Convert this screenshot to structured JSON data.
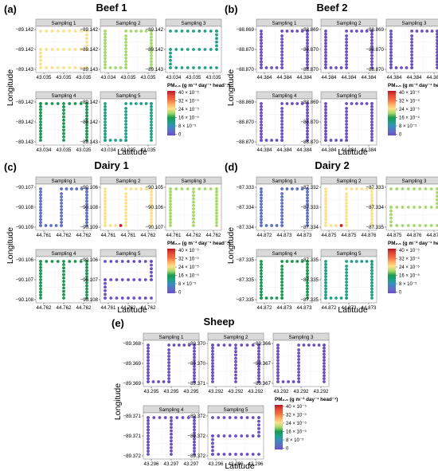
{
  "figure": {
    "legend_title": "PM₂.₅ (g m⁻² day⁻¹ head⁻¹)",
    "legend_ticks": [
      "40 × 10⁻⁵",
      "32 × 10⁻⁵",
      "24 × 10⁻⁵",
      "16 × 10⁻⁵",
      "8 × 10⁻⁵",
      "0"
    ],
    "legend_values": [
      40,
      32,
      24,
      16,
      8,
      0
    ],
    "legend_colors": [
      "#b2182b",
      "#e34a33",
      "#f46d43",
      "#fdae61",
      "#fee08b",
      "#a6d96a",
      "#1a9850",
      "#1fa187",
      "#3b8bc2",
      "#5e6fc4",
      "#6a4fc3"
    ],
    "x_axis_label": "Latitude",
    "y_axis_label": "Longitude"
  },
  "chart_data": [
    {
      "type": "scatter",
      "letter": "(a)",
      "title": "Beef 1",
      "xlabel": "Latitude",
      "ylabel": "Longitude",
      "subplots": [
        {
          "strip": "Sampling 1",
          "x_ticks": [
            "43.035",
            "43.035",
            "43.035"
          ],
          "y_ticks": [
            "−89.142",
            "−89.142",
            "−89.143"
          ],
          "level": 6,
          "shape": "s-shape"
        },
        {
          "strip": "Sampling 2",
          "x_ticks": [
            "43.034",
            "43.035",
            "43.035"
          ],
          "y_ticks": [
            "−89.142",
            "−89.142",
            "−89.143"
          ],
          "level": 5,
          "shape": "u-shape"
        },
        {
          "strip": "Sampling 3",
          "x_ticks": [
            "43.034",
            "43.035",
            "43.035"
          ],
          "y_ticks": [
            "−89.142",
            "−89.142",
            "−89.143"
          ],
          "level": 3,
          "shape": "s-shape"
        },
        {
          "strip": "Sampling 4",
          "x_ticks": [
            "43.034",
            "43.035",
            "43.035"
          ],
          "y_ticks": [
            "−89.142",
            "−89.142",
            "−89.143"
          ],
          "level": 4,
          "shape": "u-shape-inv"
        },
        {
          "strip": "Sampling 5",
          "x_ticks": [
            "43.034",
            "43.035",
            "43.035"
          ],
          "y_ticks": [
            "−89.142",
            "−89.142",
            "−89.143"
          ],
          "level": 3,
          "shape": "u-shape"
        }
      ]
    },
    {
      "type": "scatter",
      "letter": "(b)",
      "title": "Beef 2",
      "xlabel": "Latitude",
      "ylabel": "Longitude",
      "subplots": [
        {
          "strip": "Sampling 1",
          "x_ticks": [
            "44.384",
            "44.384",
            "44.384"
          ],
          "y_ticks": [
            "−88.869",
            "−88.870",
            "−88.870"
          ],
          "level": 0,
          "shape": "u-shape"
        },
        {
          "strip": "Sampling 2",
          "x_ticks": [
            "44.384",
            "44.384",
            "44.384"
          ],
          "y_ticks": [
            "−88.869",
            "−88.870",
            "−88.870"
          ],
          "level": 0,
          "shape": "u-shape"
        },
        {
          "strip": "Sampling 3",
          "x_ticks": [
            "44.384",
            "44.384",
            "44.384"
          ],
          "y_ticks": [
            "−88.869",
            "−88.870",
            "−88.870"
          ],
          "level": 0,
          "shape": "u-shape"
        },
        {
          "strip": "Sampling 4",
          "x_ticks": [
            "44.384",
            "44.384",
            "44.384"
          ],
          "y_ticks": [
            "−88.869",
            "−88.870",
            "−88.870"
          ],
          "level": 0,
          "shape": "u-shape"
        },
        {
          "strip": "Sampling 5",
          "x_ticks": [
            "44.384",
            "44.384",
            "44.384"
          ],
          "y_ticks": [
            "−88.869",
            "−88.870",
            "−88.870"
          ],
          "level": 0,
          "shape": "u-shape"
        }
      ]
    },
    {
      "type": "scatter",
      "letter": "(c)",
      "title": "Dairy 1",
      "xlabel": "Latitude",
      "ylabel": "Longitude",
      "subplots": [
        {
          "strip": "Sampling 1",
          "x_ticks": [
            "44.761",
            "44.762",
            "44.762"
          ],
          "y_ticks": [
            "−90.107",
            "−90.108",
            "−90.109"
          ],
          "level": 1,
          "shape": "u-shape"
        },
        {
          "strip": "Sampling 2",
          "x_ticks": [
            "44.761",
            "44.761",
            "44.762"
          ],
          "y_ticks": [
            "−90.106",
            "−90.108",
            "−90.109"
          ],
          "level": 6,
          "shape": "u-shape",
          "hotspot": true
        },
        {
          "strip": "Sampling 3",
          "x_ticks": [
            "44.761",
            "44.762",
            "44.762"
          ],
          "y_ticks": [
            "−90.105",
            "−90.106",
            "−90.107"
          ],
          "level": 5,
          "shape": "u-shape-inv"
        },
        {
          "strip": "Sampling 4",
          "x_ticks": [
            "44.762",
            "44.762",
            "44.762"
          ],
          "y_ticks": [
            "−90.106",
            "−90.107",
            "−90.108"
          ],
          "level": 4,
          "shape": "u-shape-inv"
        },
        {
          "strip": "Sampling 5",
          "x_ticks": [
            "44.761",
            "44.762",
            "44.762"
          ],
          "y_ticks": [
            "−90.106",
            "−90.107",
            "−90.108"
          ],
          "level": 0,
          "shape": "s-shape"
        }
      ]
    },
    {
      "type": "scatter",
      "letter": "(d)",
      "title": "Dairy 2",
      "xlabel": "Latitude",
      "ylabel": "Longitude",
      "subplots": [
        {
          "strip": "Sampling 1",
          "x_ticks": [
            "44.872",
            "44.873",
            "44.873"
          ],
          "y_ticks": [
            "−87.333",
            "−87.334",
            "−87.334"
          ],
          "level": 1,
          "shape": "u-shape"
        },
        {
          "strip": "Sampling 2",
          "x_ticks": [
            "44.875",
            "44.875",
            "44.876"
          ],
          "y_ticks": [
            "−87.332",
            "−87.333",
            "−87.334"
          ],
          "level": 6,
          "shape": "u-shape",
          "hotspot": true
        },
        {
          "strip": "Sampling 3",
          "x_ticks": [
            "44.875",
            "44.876",
            "44.877"
          ],
          "y_ticks": [
            "−87.333",
            "−87.334",
            "−87.335"
          ],
          "level": 5,
          "shape": "s-shape"
        },
        {
          "strip": "Sampling 4",
          "x_ticks": [
            "44.872",
            "44.873",
            "44.873"
          ],
          "y_ticks": [
            "−87.335",
            "−87.335",
            "−87.335"
          ],
          "level": 4,
          "shape": "u-shape"
        },
        {
          "strip": "Sampling 5",
          "x_ticks": [
            "44.872",
            "44.873",
            "44.873"
          ],
          "y_ticks": [
            "−87.335",
            "−87.335",
            "−87.335"
          ],
          "level": 3,
          "shape": "u-shape"
        }
      ]
    },
    {
      "type": "scatter",
      "letter": "(e)",
      "title": "Sheep",
      "xlabel": "Latitude",
      "ylabel": "Longitude",
      "subplots": [
        {
          "strip": "Sampling 1",
          "x_ticks": [
            "43.295",
            "43.295",
            "43.295"
          ],
          "y_ticks": [
            "−89.368",
            "−89.369",
            "−89.369"
          ],
          "level": 0,
          "shape": "u-shape"
        },
        {
          "strip": "Sampling 2",
          "x_ticks": [
            "43.292",
            "43.292",
            "43.292"
          ],
          "y_ticks": [
            "−89.370",
            "−89.370",
            "−89.371"
          ],
          "level": 0,
          "shape": "u-shape-inv"
        },
        {
          "strip": "Sampling 3",
          "x_ticks": [
            "43.292",
            "43.292",
            "43.292"
          ],
          "y_ticks": [
            "−89.366",
            "−89.367",
            "−89.367"
          ],
          "level": 0,
          "shape": "u-shape"
        },
        {
          "strip": "Sampling 4",
          "x_ticks": [
            "43.296",
            "43.297",
            "43.297"
          ],
          "y_ticks": [
            "−89.371",
            "−89.371",
            "−89.372"
          ],
          "level": 0,
          "shape": "u-shape-inv"
        },
        {
          "strip": "Sampling 5",
          "x_ticks": [
            "43.296",
            "43.296",
            "43.296"
          ],
          "y_ticks": [
            "−89.372",
            "−89.372",
            "−89.372"
          ],
          "level": 0,
          "shape": "s-shape"
        }
      ]
    }
  ]
}
